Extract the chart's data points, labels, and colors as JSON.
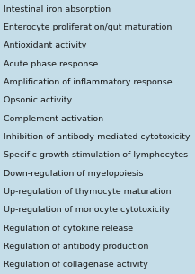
{
  "rows": [
    "Intestinal iron absorption",
    "Enterocyte proliferation/gut maturation",
    "Antioxidant activity",
    "Acute phase response",
    "Amplification of inflammatory response",
    "Opsonic activity",
    "Complement activation",
    "Inhibition of antibody-mediated cytotoxicity",
    "Specific growth stimulation of lymphocytes",
    "Down-regulation of myelopoiesis",
    "Up-regulation of thymocyte maturation",
    "Up-regulation of monocyte cytotoxicity",
    "Regulation of cytokine release",
    "Regulation of antibody production",
    "Regulation of collagenase activity"
  ],
  "background_color": "#c5dde8",
  "text_color": "#1a1a1a",
  "font_size": 6.8,
  "fig_width": 2.17,
  "fig_height": 3.05,
  "dpi": 100
}
